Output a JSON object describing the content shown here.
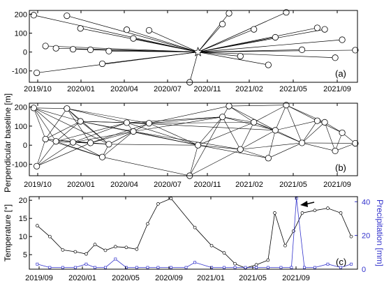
{
  "figure": {
    "ylabel_baseline": "Perpendicular baseline [m]",
    "ylabel_temperature": "Temperature [°]",
    "ylabel_precipitation": "Precipitation [mm]",
    "colors": {
      "black": "#000000",
      "precip": "#3333cc"
    }
  },
  "chart_data": [
    {
      "id": "a",
      "type": "scatter",
      "panel_label": "(a)",
      "xlabel": "",
      "ylabel": "Perpendicular baseline [m]",
      "x_tick_labels": [
        "2019/10",
        "2020/01",
        "2020/04",
        "2020/07",
        "2020/11",
        "2021/02",
        "2021/05",
        "2021/09"
      ],
      "y_tick_labels": [
        "-100",
        "0",
        "100",
        "200"
      ],
      "ylim": [
        -160,
        220
      ],
      "master": {
        "date": "2020-10-15",
        "baseline": 0
      },
      "acquisitions": [
        {
          "date": "2019-10-05",
          "baseline": 195
        },
        {
          "date": "2019-10-12",
          "baseline": -110
        },
        {
          "date": "2019-11-01",
          "baseline": 32
        },
        {
          "date": "2019-11-25",
          "baseline": 20
        },
        {
          "date": "2019-12-20",
          "baseline": 192
        },
        {
          "date": "2020-01-03",
          "baseline": 15
        },
        {
          "date": "2020-01-20",
          "baseline": 125
        },
        {
          "date": "2020-02-12",
          "baseline": 12
        },
        {
          "date": "2020-03-10",
          "baseline": -62
        },
        {
          "date": "2020-03-25",
          "baseline": 5
        },
        {
          "date": "2020-05-05",
          "baseline": 118
        },
        {
          "date": "2020-05-20",
          "baseline": 72
        },
        {
          "date": "2020-06-25",
          "baseline": 115
        },
        {
          "date": "2020-09-26",
          "baseline": -160
        },
        {
          "date": "2020-10-15",
          "baseline": 0
        },
        {
          "date": "2020-12-10",
          "baseline": 148
        },
        {
          "date": "2020-12-25",
          "baseline": 205
        },
        {
          "date": "2021-01-20",
          "baseline": -22
        },
        {
          "date": "2021-02-20",
          "baseline": 120
        },
        {
          "date": "2021-03-25",
          "baseline": -68
        },
        {
          "date": "2021-04-10",
          "baseline": 78
        },
        {
          "date": "2021-05-05",
          "baseline": 210
        },
        {
          "date": "2021-06-10",
          "baseline": 12
        },
        {
          "date": "2021-07-15",
          "baseline": 128
        },
        {
          "date": "2021-08-01",
          "baseline": 120
        },
        {
          "date": "2021-08-25",
          "baseline": -30
        },
        {
          "date": "2021-09-10",
          "baseline": 65
        },
        {
          "date": "2021-10-10",
          "baseline": 10
        }
      ]
    },
    {
      "id": "b",
      "type": "scatter",
      "panel_label": "(b)",
      "xlabel": "",
      "ylabel": "Perpendicular baseline [m]",
      "x_tick_labels": [
        "2019/10",
        "2020/01",
        "2020/04",
        "2020/07",
        "2020/11",
        "2021/02",
        "2021/05",
        "2021/09"
      ],
      "y_tick_labels": [
        "-100",
        "0",
        "100",
        "200"
      ],
      "ylim": [
        -160,
        220
      ],
      "acquisitions": [
        {
          "date": "2019-10-05",
          "baseline": 195
        },
        {
          "date": "2019-10-12",
          "baseline": -110
        },
        {
          "date": "2019-11-01",
          "baseline": 32
        },
        {
          "date": "2019-11-25",
          "baseline": 20
        },
        {
          "date": "2019-12-20",
          "baseline": 192
        },
        {
          "date": "2020-01-03",
          "baseline": 15
        },
        {
          "date": "2020-01-20",
          "baseline": 125
        },
        {
          "date": "2020-02-12",
          "baseline": 12
        },
        {
          "date": "2020-03-10",
          "baseline": -62
        },
        {
          "date": "2020-03-25",
          "baseline": 5
        },
        {
          "date": "2020-05-05",
          "baseline": 118
        },
        {
          "date": "2020-05-20",
          "baseline": 72
        },
        {
          "date": "2020-06-25",
          "baseline": 115
        },
        {
          "date": "2020-09-26",
          "baseline": -160
        },
        {
          "date": "2020-10-15",
          "baseline": 0
        },
        {
          "date": "2020-12-10",
          "baseline": 148
        },
        {
          "date": "2020-12-25",
          "baseline": 205
        },
        {
          "date": "2021-01-20",
          "baseline": -22
        },
        {
          "date": "2021-02-20",
          "baseline": 120
        },
        {
          "date": "2021-03-25",
          "baseline": -68
        },
        {
          "date": "2021-04-10",
          "baseline": 78
        },
        {
          "date": "2021-05-05",
          "baseline": 210
        },
        {
          "date": "2021-06-10",
          "baseline": 12
        },
        {
          "date": "2021-07-15",
          "baseline": 128
        },
        {
          "date": "2021-08-01",
          "baseline": 120
        },
        {
          "date": "2021-08-25",
          "baseline": -30
        },
        {
          "date": "2021-09-10",
          "baseline": 65
        },
        {
          "date": "2021-10-10",
          "baseline": 10
        }
      ],
      "interferogram_pairs": [
        [
          0,
          2
        ],
        [
          0,
          3
        ],
        [
          0,
          4
        ],
        [
          0,
          5
        ],
        [
          0,
          6
        ],
        [
          1,
          2
        ],
        [
          1,
          3
        ],
        [
          1,
          5
        ],
        [
          1,
          7
        ],
        [
          2,
          4
        ],
        [
          2,
          6
        ],
        [
          2,
          7
        ],
        [
          2,
          8
        ],
        [
          2,
          9
        ],
        [
          3,
          5
        ],
        [
          3,
          6
        ],
        [
          3,
          8
        ],
        [
          3,
          9
        ],
        [
          3,
          10
        ],
        [
          4,
          6
        ],
        [
          4,
          7
        ],
        [
          4,
          9
        ],
        [
          4,
          10
        ],
        [
          5,
          7
        ],
        [
          5,
          8
        ],
        [
          5,
          10
        ],
        [
          5,
          11
        ],
        [
          6,
          9
        ],
        [
          6,
          10
        ],
        [
          6,
          11
        ],
        [
          6,
          12
        ],
        [
          7,
          9
        ],
        [
          7,
          11
        ],
        [
          7,
          12
        ],
        [
          8,
          9
        ],
        [
          8,
          11
        ],
        [
          8,
          13
        ],
        [
          9,
          11
        ],
        [
          9,
          12
        ],
        [
          9,
          14
        ],
        [
          10,
          11
        ],
        [
          10,
          12
        ],
        [
          10,
          14
        ],
        [
          10,
          15
        ],
        [
          11,
          12
        ],
        [
          11,
          14
        ],
        [
          11,
          15
        ],
        [
          11,
          17
        ],
        [
          12,
          14
        ],
        [
          12,
          15
        ],
        [
          12,
          16
        ],
        [
          13,
          14
        ],
        [
          13,
          15
        ],
        [
          13,
          17
        ],
        [
          14,
          15
        ],
        [
          14,
          17
        ],
        [
          14,
          18
        ],
        [
          14,
          19
        ],
        [
          15,
          16
        ],
        [
          15,
          17
        ],
        [
          15,
          18
        ],
        [
          15,
          20
        ],
        [
          16,
          18
        ],
        [
          16,
          20
        ],
        [
          16,
          21
        ],
        [
          17,
          18
        ],
        [
          17,
          19
        ],
        [
          17,
          20
        ],
        [
          17,
          22
        ],
        [
          18,
          20
        ],
        [
          18,
          21
        ],
        [
          18,
          22
        ],
        [
          19,
          20
        ],
        [
          19,
          22
        ],
        [
          20,
          21
        ],
        [
          20,
          22
        ],
        [
          20,
          23
        ],
        [
          21,
          22
        ],
        [
          21,
          23
        ],
        [
          21,
          24
        ],
        [
          22,
          23
        ],
        [
          22,
          24
        ],
        [
          22,
          25
        ],
        [
          22,
          27
        ],
        [
          23,
          24
        ],
        [
          23,
          26
        ],
        [
          24,
          25
        ],
        [
          24,
          26
        ],
        [
          25,
          26
        ],
        [
          25,
          27
        ],
        [
          26,
          27
        ],
        [
          0,
          9
        ],
        [
          6,
          14
        ],
        [
          12,
          18
        ],
        [
          4,
          12
        ],
        [
          10,
          20
        ]
      ]
    },
    {
      "id": "c",
      "type": "line",
      "panel_label": "(c)",
      "xlabel": "",
      "ylabel": "Temperature [°]",
      "y2label": "Precipitation [mm]",
      "x_tick_labels": [
        "2019/09",
        "2020/01",
        "2020/05",
        "2020/09",
        "2021/01",
        "2021/05",
        "2021/09"
      ],
      "y_tick_labels": [
        "5",
        "10",
        "15",
        "20"
      ],
      "y2_tick_labels": [
        "0",
        "20",
        "40"
      ],
      "ylim": [
        1,
        21
      ],
      "y2lim": [
        0,
        43
      ],
      "annotation": "arrow pointing to precipitation peak",
      "series": [
        {
          "name": "",
          "axis": "left",
          "color": "#000000",
          "points": [
            {
              "date": "2019-09-20",
              "value": 13
            },
            {
              "date": "2019-10-20",
              "value": 10
            },
            {
              "date": "2019-11-20",
              "value": 6.3
            },
            {
              "date": "2019-12-20",
              "value": 5.8
            },
            {
              "date": "2020-01-15",
              "value": 5.2
            },
            {
              "date": "2020-02-05",
              "value": 7.8
            },
            {
              "date": "2020-03-01",
              "value": 6.2
            },
            {
              "date": "2020-03-25",
              "value": 7.2
            },
            {
              "date": "2020-04-20",
              "value": 7
            },
            {
              "date": "2020-05-15",
              "value": 6.5
            },
            {
              "date": "2020-06-10",
              "value": 13.5
            },
            {
              "date": "2020-07-05",
              "value": 19
            },
            {
              "date": "2020-08-05",
              "value": 20.5
            },
            {
              "date": "2020-10-01",
              "value": 12.5
            },
            {
              "date": "2020-11-10",
              "value": 7.5
            },
            {
              "date": "2020-12-10",
              "value": 5.5
            },
            {
              "date": "2021-01-05",
              "value": 2.5
            },
            {
              "date": "2021-01-30",
              "value": 1.3
            },
            {
              "date": "2021-02-25",
              "value": 2.2
            },
            {
              "date": "2021-03-25",
              "value": 3.5
            },
            {
              "date": "2021-04-10",
              "value": 16.5
            },
            {
              "date": "2021-05-05",
              "value": 7.5
            },
            {
              "date": "2021-05-25",
              "value": 11.5
            },
            {
              "date": "2021-06-15",
              "value": 16.5
            },
            {
              "date": "2021-07-15",
              "value": 17.2
            },
            {
              "date": "2021-08-15",
              "value": 17.8
            },
            {
              "date": "2021-09-15",
              "value": 16.5
            },
            {
              "date": "2021-10-10",
              "value": 10
            }
          ]
        },
        {
          "name": "",
          "axis": "right",
          "color": "#3333cc",
          "points": [
            {
              "date": "2019-09-20",
              "value": 3
            },
            {
              "date": "2019-10-20",
              "value": 1
            },
            {
              "date": "2019-11-20",
              "value": 1
            },
            {
              "date": "2019-12-20",
              "value": 1
            },
            {
              "date": "2020-01-15",
              "value": 3
            },
            {
              "date": "2020-02-05",
              "value": 1
            },
            {
              "date": "2020-03-01",
              "value": 1
            },
            {
              "date": "2020-03-25",
              "value": 6
            },
            {
              "date": "2020-04-20",
              "value": 1
            },
            {
              "date": "2020-05-15",
              "value": 1
            },
            {
              "date": "2020-06-10",
              "value": 1
            },
            {
              "date": "2020-07-05",
              "value": 1
            },
            {
              "date": "2020-08-05",
              "value": 1
            },
            {
              "date": "2020-09-10",
              "value": 1
            },
            {
              "date": "2020-10-01",
              "value": 4
            },
            {
              "date": "2020-11-10",
              "value": 1
            },
            {
              "date": "2020-12-10",
              "value": 1
            },
            {
              "date": "2021-01-05",
              "value": 1
            },
            {
              "date": "2021-01-30",
              "value": 1
            },
            {
              "date": "2021-02-25",
              "value": 1
            },
            {
              "date": "2021-03-25",
              "value": 1
            },
            {
              "date": "2021-04-25",
              "value": 1
            },
            {
              "date": "2021-05-20",
              "value": 1
            },
            {
              "date": "2021-06-01",
              "value": 42
            },
            {
              "date": "2021-06-20",
              "value": 1
            },
            {
              "date": "2021-07-15",
              "value": 1
            },
            {
              "date": "2021-08-15",
              "value": 3
            },
            {
              "date": "2021-09-15",
              "value": 1
            },
            {
              "date": "2021-10-10",
              "value": 3
            }
          ]
        }
      ]
    }
  ]
}
